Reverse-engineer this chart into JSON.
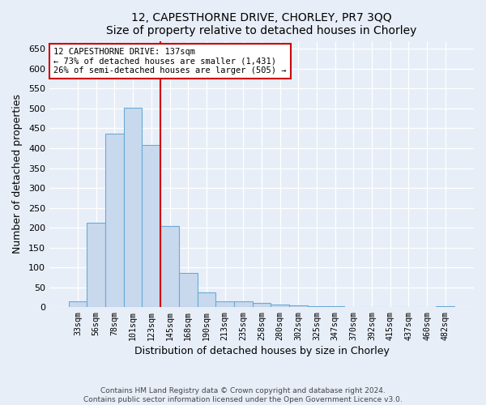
{
  "title": "12, CAPESTHORNE DRIVE, CHORLEY, PR7 3QQ",
  "subtitle": "Size of property relative to detached houses in Chorley",
  "xlabel": "Distribution of detached houses by size in Chorley",
  "ylabel": "Number of detached properties",
  "footer_line1": "Contains HM Land Registry data © Crown copyright and database right 2024.",
  "footer_line2": "Contains public sector information licensed under the Open Government Licence v3.0.",
  "categories": [
    "33sqm",
    "56sqm",
    "78sqm",
    "101sqm",
    "123sqm",
    "145sqm",
    "168sqm",
    "190sqm",
    "213sqm",
    "235sqm",
    "258sqm",
    "280sqm",
    "302sqm",
    "325sqm",
    "347sqm",
    "370sqm",
    "392sqm",
    "415sqm",
    "437sqm",
    "460sqm",
    "482sqm"
  ],
  "values": [
    14,
    213,
    436,
    502,
    408,
    205,
    85,
    37,
    15,
    14,
    10,
    7,
    4,
    3,
    2,
    1,
    1,
    1,
    0,
    0,
    3
  ],
  "bar_color": "#c8d9ee",
  "bar_edge_color": "#6aaad4",
  "marker_line_index": 4,
  "marker_line_color": "#cc0000",
  "annotation_line1": "12 CAPESTHORNE DRIVE: 137sqm",
  "annotation_line2": "← 73% of detached houses are smaller (1,431)",
  "annotation_line3": "26% of semi-detached houses are larger (505) →",
  "ylim": [
    0,
    670
  ],
  "yticks": [
    0,
    50,
    100,
    150,
    200,
    250,
    300,
    350,
    400,
    450,
    500,
    550,
    600,
    650
  ],
  "bg_color": "#e8eef8",
  "grid_color": "#ffffff",
  "bar_width": 1.0
}
